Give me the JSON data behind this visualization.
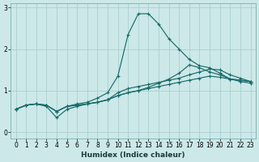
{
  "xlabel": "Humidex (Indice chaleur)",
  "ylabel": "",
  "bg_color": "#cce8e8",
  "grid_color": "#aacfcf",
  "line_color": "#1a6b6b",
  "xlim": [
    -0.5,
    23.5
  ],
  "ylim": [
    -0.15,
    3.1
  ],
  "yticks": [
    0,
    1,
    2,
    3
  ],
  "xticks": [
    0,
    1,
    2,
    3,
    4,
    5,
    6,
    7,
    8,
    9,
    10,
    11,
    12,
    13,
    14,
    15,
    16,
    17,
    18,
    19,
    20,
    21,
    22,
    23
  ],
  "lines": [
    {
      "x": [
        0,
        1,
        2,
        3,
        4,
        5,
        6,
        7,
        8,
        9,
        10,
        11,
        12,
        13,
        14,
        15,
        16,
        17,
        18,
        19,
        20,
        21,
        22,
        23
      ],
      "y": [
        0.55,
        0.65,
        0.68,
        0.65,
        0.5,
        0.62,
        0.65,
        0.68,
        0.72,
        0.78,
        0.88,
        0.95,
        1.0,
        1.05,
        1.1,
        1.15,
        1.2,
        1.25,
        1.3,
        1.35,
        1.32,
        1.28,
        1.25,
        1.22
      ]
    },
    {
      "x": [
        0,
        1,
        2,
        3,
        4,
        5,
        6,
        7,
        8,
        9,
        10,
        11,
        12,
        13,
        14,
        15,
        16,
        17,
        18,
        19,
        20,
        21,
        22,
        23
      ],
      "y": [
        0.55,
        0.65,
        0.68,
        0.65,
        0.5,
        0.62,
        0.68,
        0.72,
        0.82,
        0.95,
        1.35,
        2.35,
        2.85,
        2.85,
        2.6,
        2.25,
        2.0,
        1.75,
        1.6,
        1.55,
        1.42,
        1.28,
        1.25,
        1.22
      ]
    },
    {
      "x": [
        0,
        1,
        2,
        3,
        4,
        5,
        6,
        7,
        8,
        9,
        10,
        11,
        12,
        13,
        14,
        15,
        16,
        17,
        18,
        19,
        20,
        21,
        22,
        23
      ],
      "y": [
        0.55,
        0.65,
        0.68,
        0.65,
        0.5,
        0.62,
        0.65,
        0.68,
        0.72,
        0.78,
        0.95,
        1.05,
        1.1,
        1.15,
        1.2,
        1.25,
        1.3,
        1.38,
        1.45,
        1.52,
        1.5,
        1.38,
        1.3,
        1.22
      ]
    },
    {
      "x": [
        0,
        1,
        2,
        3,
        4,
        5,
        6,
        7,
        8,
        9,
        10,
        11,
        12,
        13,
        14,
        15,
        16,
        17,
        18,
        19,
        20,
        21,
        22,
        23
      ],
      "y": [
        0.55,
        0.65,
        0.68,
        0.62,
        0.35,
        0.55,
        0.62,
        0.68,
        0.72,
        0.78,
        0.88,
        0.95,
        1.0,
        1.08,
        1.18,
        1.28,
        1.42,
        1.62,
        1.55,
        1.45,
        1.38,
        1.28,
        1.22,
        1.18
      ]
    }
  ]
}
